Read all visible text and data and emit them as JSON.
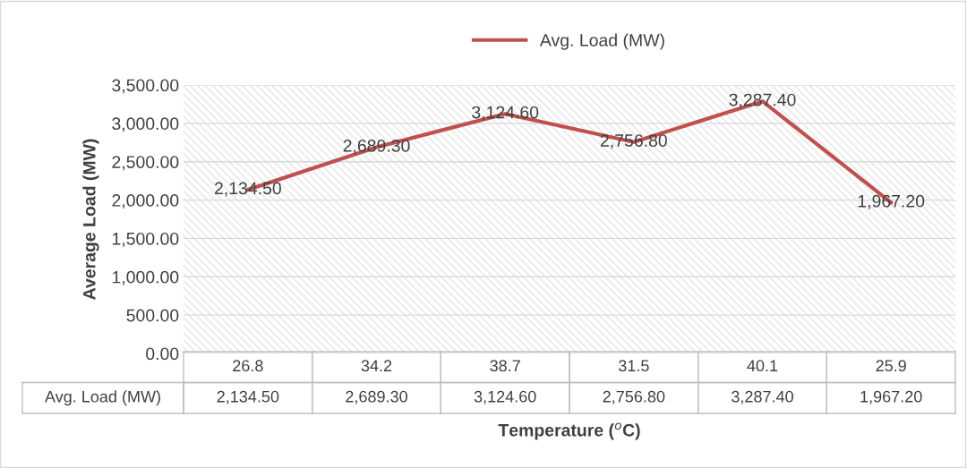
{
  "chart_data": {
    "type": "line",
    "xlabel": "Temperature ($^{o}$C)",
    "ylabel": "Average Load (MW)",
    "categories": [
      "26.8",
      "34.2",
      "38.7",
      "31.5",
      "40.1",
      "25.9"
    ],
    "series": [
      {
        "name": "Avg. Load (MW)",
        "color": "#c0504d",
        "values": [
          2134.5,
          2689.3,
          3124.6,
          2756.8,
          3287.4,
          1967.2
        ],
        "value_labels": [
          "2,134.50",
          "2,689.30",
          "3,124.60",
          "2,756.80",
          "3,287.40",
          "1,967.20"
        ]
      }
    ],
    "ylim": [
      0,
      3500
    ],
    "yticks": [
      {
        "value": 0,
        "label": "0.00"
      },
      {
        "value": 500,
        "label": "500.00"
      },
      {
        "value": 1000,
        "label": "1,000.00"
      },
      {
        "value": 1500,
        "label": "1,500.00"
      },
      {
        "value": 2000,
        "label": "2,000.00"
      },
      {
        "value": 2500,
        "label": "2,500.00"
      },
      {
        "value": 3000,
        "label": "3,000.00"
      },
      {
        "value": 3500,
        "label": "3,500.00"
      }
    ],
    "grid": "y",
    "legend": "top",
    "marker": "none",
    "line_style": "solid"
  }
}
